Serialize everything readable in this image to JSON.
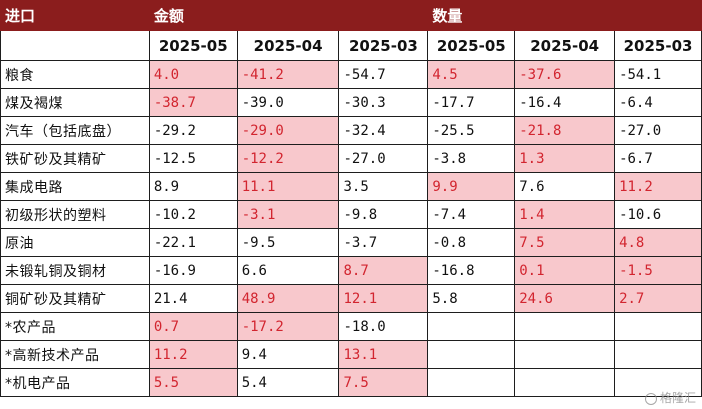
{
  "header": {
    "corner": "进口",
    "group_value": "金额",
    "group_volume": "数量"
  },
  "periods": [
    "2025-05",
    "2025-04",
    "2025-03",
    "2025-05",
    "2025-04",
    "2025-03"
  ],
  "colors": {
    "header_bg": "#8b1d1d",
    "highlight_bg": "#f8c8cc",
    "highlight_text": "#d2252f"
  },
  "rows": [
    {
      "label": "粮食",
      "cells": [
        {
          "v": "4.0",
          "hl": true
        },
        {
          "v": "-41.2",
          "hl": true
        },
        {
          "v": "-54.7",
          "hl": false
        },
        {
          "v": "4.5",
          "hl": true
        },
        {
          "v": "-37.6",
          "hl": true
        },
        {
          "v": "-54.1",
          "hl": false
        }
      ]
    },
    {
      "label": "煤及褐煤",
      "cells": [
        {
          "v": "-38.7",
          "hl": true
        },
        {
          "v": "-39.0",
          "hl": false
        },
        {
          "v": "-30.3",
          "hl": false
        },
        {
          "v": "-17.7",
          "hl": false
        },
        {
          "v": "-16.4",
          "hl": false
        },
        {
          "v": "-6.4",
          "hl": false
        }
      ]
    },
    {
      "label": "汽车（包括底盘）",
      "cells": [
        {
          "v": "-29.2",
          "hl": false
        },
        {
          "v": "-29.0",
          "hl": true
        },
        {
          "v": "-32.4",
          "hl": false
        },
        {
          "v": "-25.5",
          "hl": false
        },
        {
          "v": "-21.8",
          "hl": true
        },
        {
          "v": "-27.0",
          "hl": false
        }
      ]
    },
    {
      "label": "铁矿砂及其精矿",
      "cells": [
        {
          "v": "-12.5",
          "hl": false
        },
        {
          "v": "-12.2",
          "hl": true
        },
        {
          "v": "-27.0",
          "hl": false
        },
        {
          "v": "-3.8",
          "hl": false
        },
        {
          "v": "1.3",
          "hl": true
        },
        {
          "v": "-6.7",
          "hl": false
        }
      ]
    },
    {
      "label": "集成电路",
      "cells": [
        {
          "v": "8.9",
          "hl": false
        },
        {
          "v": "11.1",
          "hl": true
        },
        {
          "v": "3.5",
          "hl": false
        },
        {
          "v": "9.9",
          "hl": true
        },
        {
          "v": "7.6",
          "hl": false
        },
        {
          "v": "11.2",
          "hl": true
        }
      ]
    },
    {
      "label": "初级形状的塑料",
      "cells": [
        {
          "v": "-10.2",
          "hl": false
        },
        {
          "v": "-3.1",
          "hl": true
        },
        {
          "v": "-9.8",
          "hl": false
        },
        {
          "v": "-7.4",
          "hl": false
        },
        {
          "v": "1.4",
          "hl": true
        },
        {
          "v": "-10.6",
          "hl": false
        }
      ]
    },
    {
      "label": "原油",
      "cells": [
        {
          "v": "-22.1",
          "hl": false
        },
        {
          "v": "-9.5",
          "hl": false
        },
        {
          "v": "-3.7",
          "hl": false
        },
        {
          "v": "-0.8",
          "hl": false
        },
        {
          "v": "7.5",
          "hl": true
        },
        {
          "v": "4.8",
          "hl": true
        }
      ]
    },
    {
      "label": "未锻轧铜及铜材",
      "cells": [
        {
          "v": "-16.9",
          "hl": false
        },
        {
          "v": "6.6",
          "hl": false
        },
        {
          "v": "8.7",
          "hl": true
        },
        {
          "v": "-16.8",
          "hl": false
        },
        {
          "v": "0.1",
          "hl": true
        },
        {
          "v": "-1.5",
          "hl": true
        }
      ]
    },
    {
      "label": "铜矿砂及其精矿",
      "cells": [
        {
          "v": "21.4",
          "hl": false
        },
        {
          "v": "48.9",
          "hl": true
        },
        {
          "v": "12.1",
          "hl": true
        },
        {
          "v": "5.8",
          "hl": false
        },
        {
          "v": "24.6",
          "hl": true
        },
        {
          "v": "2.7",
          "hl": true
        }
      ]
    },
    {
      "label": "*农产品",
      "cells": [
        {
          "v": "0.7",
          "hl": true
        },
        {
          "v": "-17.2",
          "hl": true
        },
        {
          "v": "-18.0",
          "hl": false
        },
        {
          "v": "",
          "hl": false
        },
        {
          "v": "",
          "hl": false
        },
        {
          "v": "",
          "hl": false
        }
      ]
    },
    {
      "label": "*高新技术产品",
      "cells": [
        {
          "v": "11.2",
          "hl": true
        },
        {
          "v": "9.4",
          "hl": false
        },
        {
          "v": "13.1",
          "hl": true
        },
        {
          "v": "",
          "hl": false
        },
        {
          "v": "",
          "hl": false
        },
        {
          "v": "",
          "hl": false
        }
      ]
    },
    {
      "label": "*机电产品",
      "cells": [
        {
          "v": "5.5",
          "hl": true
        },
        {
          "v": "5.4",
          "hl": false
        },
        {
          "v": "7.5",
          "hl": true
        },
        {
          "v": "",
          "hl": false
        },
        {
          "v": "",
          "hl": false
        },
        {
          "v": "",
          "hl": false
        }
      ]
    }
  ],
  "watermark": "格隆汇"
}
